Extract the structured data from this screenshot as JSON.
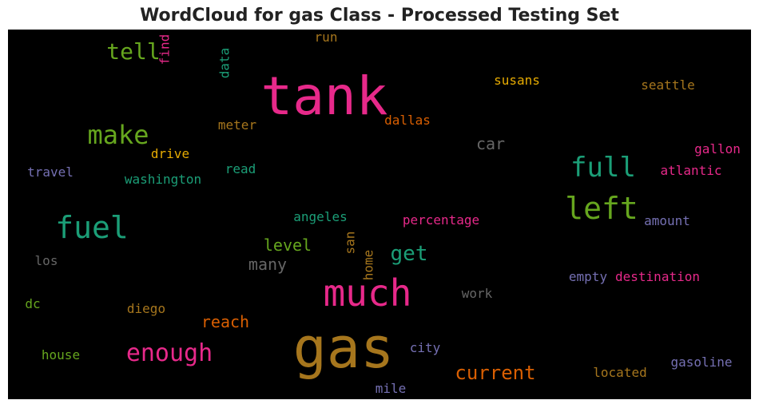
{
  "chart_data": {
    "type": "wordcloud",
    "title": "WordCloud for gas Class - Processed Testing Set",
    "background": "#000000",
    "words": [
      {
        "text": "tank",
        "color": "#e7298a"
      },
      {
        "text": "gas",
        "color": "#a6761d"
      },
      {
        "text": "much",
        "color": "#e7298a"
      },
      {
        "text": "fuel",
        "color": "#1b9e77"
      },
      {
        "text": "left",
        "color": "#66a61e"
      },
      {
        "text": "full",
        "color": "#1b9e77"
      },
      {
        "text": "make",
        "color": "#66a61e"
      },
      {
        "text": "enough",
        "color": "#e7298a"
      },
      {
        "text": "current",
        "color": "#d95f02"
      },
      {
        "text": "tell",
        "color": "#66a61e"
      },
      {
        "text": "get",
        "color": "#1b9e77"
      },
      {
        "text": "many",
        "color": "#666666"
      },
      {
        "text": "level",
        "color": "#66a61e"
      },
      {
        "text": "reach",
        "color": "#d95f02"
      },
      {
        "text": "car",
        "color": "#666666"
      },
      {
        "text": "find",
        "color": "#e7298a"
      },
      {
        "text": "data",
        "color": "#1b9e77"
      },
      {
        "text": "run",
        "color": "#a6761d"
      },
      {
        "text": "susans",
        "color": "#e6ab02"
      },
      {
        "text": "seattle",
        "color": "#a6761d"
      },
      {
        "text": "dallas",
        "color": "#d95f02"
      },
      {
        "text": "meter",
        "color": "#a6761d"
      },
      {
        "text": "drive",
        "color": "#e6ab02"
      },
      {
        "text": "gallon",
        "color": "#e7298a"
      },
      {
        "text": "atlantic",
        "color": "#e7298a"
      },
      {
        "text": "travel",
        "color": "#7570b3"
      },
      {
        "text": "washington",
        "color": "#1b9e77"
      },
      {
        "text": "read",
        "color": "#1b9e77"
      },
      {
        "text": "angeles",
        "color": "#1b9e77"
      },
      {
        "text": "percentage",
        "color": "#e7298a"
      },
      {
        "text": "amount",
        "color": "#7570b3"
      },
      {
        "text": "san",
        "color": "#a6761d"
      },
      {
        "text": "home",
        "color": "#a6761d"
      },
      {
        "text": "los",
        "color": "#666666"
      },
      {
        "text": "empty",
        "color": "#7570b3"
      },
      {
        "text": "destination",
        "color": "#e7298a"
      },
      {
        "text": "work",
        "color": "#666666"
      },
      {
        "text": "dc",
        "color": "#66a61e"
      },
      {
        "text": "diego",
        "color": "#a6761d"
      },
      {
        "text": "city",
        "color": "#7570b3"
      },
      {
        "text": "house",
        "color": "#66a61e"
      },
      {
        "text": "gasoline",
        "color": "#7570b3"
      },
      {
        "text": "located",
        "color": "#a6761d"
      },
      {
        "text": "mile",
        "color": "#7570b3"
      }
    ]
  }
}
